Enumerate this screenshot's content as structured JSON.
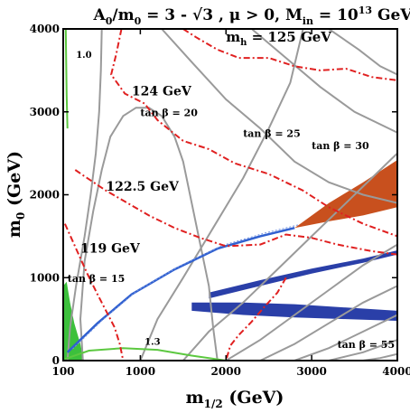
{
  "chart_data": {
    "type": "line",
    "title": "A₀/m₀ = 3 - √3 ,  μ > 0, Mᵢₙ = 10¹³ GeV",
    "title_parts": {
      "a0": "A",
      "a0_sub": "0",
      "m0_frac": "/m",
      "m0_sub": "0",
      "eq": " = 3 - √3 ,  μ > 0, M",
      "min_sub": "in",
      "gev": " = 10",
      "exp": "13",
      "unit": " GeV"
    },
    "xlabel": {
      "main": "m",
      "sub": "1/2",
      "unit": " (GeV)"
    },
    "ylabel": {
      "main": "m",
      "sub": "0",
      "unit": " (GeV)"
    },
    "xlim": [
      100,
      4000
    ],
    "ylim": [
      0,
      4000
    ],
    "xticks": [
      100,
      1000,
      2000,
      3000,
      4000
    ],
    "yticks": [
      0,
      1000,
      2000,
      3000,
      4000
    ],
    "higgs_contours": [
      {
        "label": "m",
        "label_sub": "h",
        "label_rest": " = 125 GeV",
        "color": "#e02020",
        "points": [
          [
            1500,
            4000
          ],
          [
            1650,
            3900
          ],
          [
            1900,
            3750
          ],
          [
            2150,
            3650
          ],
          [
            2500,
            3650
          ],
          [
            2800,
            3550
          ],
          [
            3100,
            3500
          ],
          [
            3400,
            3520
          ],
          [
            3700,
            3420
          ],
          [
            4000,
            3380
          ]
        ]
      },
      {
        "label": "124 GeV",
        "color": "#e02020",
        "points": [
          [
            780,
            4000
          ],
          [
            720,
            3700
          ],
          [
            660,
            3450
          ],
          [
            820,
            3220
          ],
          [
            1050,
            3100
          ],
          [
            1200,
            2900
          ],
          [
            1500,
            2650
          ],
          [
            1800,
            2550
          ],
          [
            2100,
            2380
          ],
          [
            2500,
            2250
          ],
          [
            2900,
            2050
          ],
          [
            3200,
            1850
          ],
          [
            3600,
            1650
          ],
          [
            4000,
            1500
          ]
        ]
      },
      {
        "label": "122.5 GeV",
        "color": "#e02020",
        "points": [
          [
            240,
            2300
          ],
          [
            380,
            2200
          ],
          [
            600,
            2050
          ],
          [
            850,
            1900
          ],
          [
            1100,
            1750
          ],
          [
            1400,
            1600
          ],
          [
            1700,
            1480
          ],
          [
            2000,
            1380
          ],
          [
            2400,
            1400
          ],
          [
            2700,
            1520
          ],
          [
            3000,
            1480
          ],
          [
            3300,
            1400
          ],
          [
            3700,
            1320
          ],
          [
            4000,
            1280
          ]
        ]
      },
      {
        "label": "119 GeV",
        "color": "#e02020",
        "points": [
          [
            120,
            1650
          ],
          [
            250,
            1350
          ],
          [
            380,
            1050
          ],
          [
            500,
            800
          ],
          [
            600,
            600
          ],
          [
            700,
            400
          ],
          [
            760,
            200
          ],
          [
            800,
            0
          ]
        ]
      },
      {
        "label": "",
        "color": "#e02020",
        "points": [
          [
            2700,
            1000
          ],
          [
            2600,
            820
          ],
          [
            2450,
            650
          ],
          [
            2300,
            470
          ],
          [
            2150,
            310
          ],
          [
            2050,
            180
          ],
          [
            2000,
            0
          ]
        ]
      }
    ],
    "tan_beta_contours": [
      {
        "label": "tan β = 20",
        "points": [
          [
            330,
            0
          ],
          [
            300,
            500
          ],
          [
            350,
            1200
          ],
          [
            450,
            1800
          ],
          [
            550,
            2300
          ],
          [
            650,
            2700
          ],
          [
            800,
            2950
          ],
          [
            950,
            3050
          ],
          [
            1100,
            3050
          ],
          [
            1250,
            2950
          ],
          [
            1400,
            2700
          ],
          [
            1500,
            2400
          ],
          [
            1600,
            1900
          ],
          [
            1700,
            1400
          ],
          [
            1800,
            900
          ],
          [
            1850,
            400
          ],
          [
            1900,
            0
          ]
        ]
      },
      {
        "label": "tan β = 15",
        "points": [
          [
            150,
            0
          ],
          [
            180,
            400
          ],
          [
            250,
            900
          ],
          [
            350,
            1500
          ],
          [
            420,
            2000
          ],
          [
            480,
            2500
          ],
          [
            520,
            3000
          ],
          [
            540,
            3500
          ],
          [
            550,
            4000
          ]
        ]
      },
      {
        "label": "tan β = 25",
        "points": [
          [
            1000,
            0
          ],
          [
            1200,
            500
          ],
          [
            1500,
            1000
          ],
          [
            1850,
            1600
          ],
          [
            2200,
            2200
          ],
          [
            2500,
            2800
          ],
          [
            2750,
            3350
          ],
          [
            2900,
            4000
          ]
        ]
      },
      {
        "label": "tan β = 30",
        "points": [
          [
            1500,
            0
          ],
          [
            1800,
            350
          ],
          [
            2200,
            700
          ],
          [
            2600,
            1100
          ],
          [
            3000,
            1500
          ],
          [
            3400,
            1900
          ],
          [
            3800,
            2300
          ],
          [
            4000,
            2500
          ]
        ]
      },
      {
        "label": "",
        "points": [
          [
            2400,
            0
          ],
          [
            2800,
            200
          ],
          [
            3200,
            450
          ],
          [
            3600,
            700
          ],
          [
            4000,
            900
          ]
        ]
      },
      {
        "label": "",
        "points": [
          [
            2000,
            0
          ],
          [
            2400,
            250
          ],
          [
            2800,
            550
          ],
          [
            3200,
            850
          ],
          [
            3600,
            1150
          ],
          [
            4000,
            1400
          ]
        ]
      },
      {
        "label": "",
        "points": [
          [
            2800,
            0
          ],
          [
            3200,
            150
          ],
          [
            3600,
            350
          ],
          [
            4000,
            550
          ]
        ]
      },
      {
        "label": "",
        "points": [
          [
            3200,
            0
          ],
          [
            3600,
            100
          ],
          [
            4000,
            250
          ]
        ]
      },
      {
        "label": "tan β = 55",
        "points": [
          [
            3600,
            0
          ],
          [
            3800,
            30
          ],
          [
            4000,
            80
          ]
        ]
      },
      {
        "label": "",
        "points": [
          [
            1250,
            4000
          ],
          [
            1600,
            3600
          ],
          [
            2000,
            3150
          ],
          [
            2400,
            2800
          ],
          [
            2800,
            2400
          ],
          [
            3200,
            2150
          ],
          [
            3600,
            2000
          ],
          [
            4000,
            1900
          ]
        ]
      },
      {
        "label": "",
        "points": [
          [
            2300,
            4000
          ],
          [
            2700,
            3650
          ],
          [
            3100,
            3300
          ],
          [
            3500,
            3000
          ],
          [
            3900,
            2800
          ],
          [
            4000,
            2750
          ]
        ]
      },
      {
        "label": "",
        "points": [
          [
            3200,
            4000
          ],
          [
            3550,
            3750
          ],
          [
            3800,
            3550
          ],
          [
            4000,
            3450
          ]
        ]
      }
    ],
    "green_contours": [
      {
        "label": "1.0",
        "points": [
          [
            150,
            2800
          ],
          [
            140,
            3200
          ],
          [
            135,
            3600
          ],
          [
            130,
            4000
          ]
        ]
      },
      {
        "label": "1.3",
        "points": [
          [
            120,
            20
          ],
          [
            400,
            120
          ],
          [
            800,
            150
          ],
          [
            1200,
            130
          ],
          [
            1600,
            60
          ],
          [
            2000,
            0
          ]
        ]
      }
    ],
    "blue_band": {
      "points": [
        [
          150,
          100
        ],
        [
          500,
          450
        ],
        [
          900,
          800
        ],
        [
          1400,
          1100
        ],
        [
          1900,
          1350
        ],
        [
          2400,
          1500
        ],
        [
          2800,
          1600
        ]
      ],
      "color": "#3060d0"
    },
    "orange_region": {
      "points": [
        [
          2800,
          1600
        ],
        [
          3200,
          1900
        ],
        [
          3600,
          2150
        ],
        [
          4000,
          2420
        ],
        [
          4000,
          1850
        ],
        [
          3600,
          1750
        ],
        [
          3200,
          1680
        ],
        [
          2800,
          1600
        ]
      ],
      "color": "#c8501e"
    },
    "blue_bottom_region": {
      "points": [
        [
          1600,
          600
        ],
        [
          2200,
          550
        ],
        [
          2800,
          520
        ],
        [
          3400,
          500
        ],
        [
          4000,
          480
        ],
        [
          4000,
          600
        ],
        [
          3400,
          640
        ],
        [
          2800,
          680
        ],
        [
          2200,
          700
        ],
        [
          1600,
          700
        ]
      ],
      "color": "#2a3fa8"
    },
    "blue_wedge": {
      "points": [
        [
          1800,
          750
        ],
        [
          2400,
          900
        ],
        [
          3000,
          1050
        ],
        [
          3600,
          1180
        ],
        [
          4000,
          1280
        ],
        [
          4000,
          1330
        ],
        [
          3600,
          1230
        ],
        [
          3000,
          1110
        ],
        [
          2400,
          970
        ],
        [
          1800,
          820
        ]
      ],
      "color": "#2a3fa8"
    },
    "green_region": {
      "points": [
        [
          100,
          0
        ],
        [
          100,
          900
        ],
        [
          140,
          950
        ],
        [
          180,
          700
        ],
        [
          230,
          450
        ],
        [
          300,
          200
        ],
        [
          340,
          0
        ]
      ],
      "color": "#3cc03c"
    },
    "grid": false,
    "legend": "none"
  }
}
